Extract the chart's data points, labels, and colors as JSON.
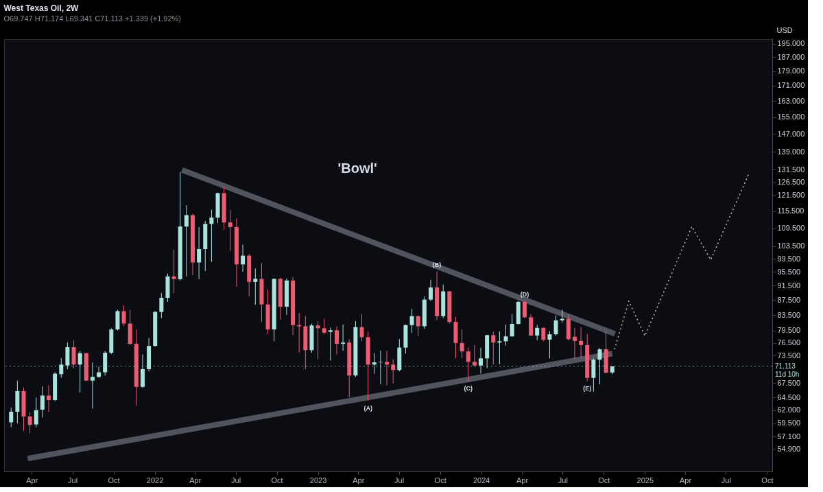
{
  "chart_data": {
    "type": "candlestick",
    "title": "West Texas Oil, 2W",
    "subtitle": "O69.747 H71.174 L69.341 C71.113 +1.339 (+1.92%)",
    "ylabel": "USD",
    "x": [
      "2021-02-14",
      "2021-02-28",
      "2021-03-14",
      "2021-03-28",
      "2021-04-11",
      "2021-04-25",
      "2021-05-09",
      "2021-05-23",
      "2021-06-06",
      "2021-06-20",
      "2021-07-04",
      "2021-07-18",
      "2021-08-01",
      "2021-08-15",
      "2021-08-29",
      "2021-09-12",
      "2021-09-26",
      "2021-10-10",
      "2021-10-24",
      "2021-11-07",
      "2021-11-21",
      "2021-12-05",
      "2021-12-19",
      "2022-01-02",
      "2022-01-16",
      "2022-01-30",
      "2022-02-13",
      "2022-02-27",
      "2022-03-13",
      "2022-03-27",
      "2022-04-10",
      "2022-04-24",
      "2022-05-08",
      "2022-05-22",
      "2022-06-05",
      "2022-06-19",
      "2022-07-03",
      "2022-07-17",
      "2022-07-31",
      "2022-08-14",
      "2022-08-28",
      "2022-09-11",
      "2022-09-25",
      "2022-10-09",
      "2022-10-23",
      "2022-11-06",
      "2022-11-20",
      "2022-12-04",
      "2022-12-18",
      "2023-01-01",
      "2023-01-15",
      "2023-01-29",
      "2023-02-12",
      "2023-02-26",
      "2023-03-12",
      "2023-03-26",
      "2023-04-09",
      "2023-04-23",
      "2023-05-07",
      "2023-05-21",
      "2023-06-04",
      "2023-06-18",
      "2023-07-02",
      "2023-07-16",
      "2023-07-30",
      "2023-08-13",
      "2023-08-27",
      "2023-09-10",
      "2023-09-24",
      "2023-10-08",
      "2023-10-22",
      "2023-11-05",
      "2023-11-19",
      "2023-12-03",
      "2023-12-17",
      "2023-12-31",
      "2024-01-14",
      "2024-01-28",
      "2024-02-11",
      "2024-02-25",
      "2024-03-10",
      "2024-03-24",
      "2024-04-07",
      "2024-04-21",
      "2024-05-05",
      "2024-05-19",
      "2024-06-02",
      "2024-06-16",
      "2024-06-30",
      "2024-07-14",
      "2024-07-28",
      "2024-08-11",
      "2024-08-25",
      "2024-09-08",
      "2024-09-22",
      "2024-10-06",
      "2024-10-20"
    ],
    "ohlc": [
      [
        59.7,
        62.5,
        58.8,
        61.7
      ],
      [
        61.7,
        68.0,
        59.5,
        65.8
      ],
      [
        65.8,
        66.5,
        58.1,
        60.8
      ],
      [
        60.8,
        61.6,
        57.7,
        59.2
      ],
      [
        59.3,
        64.5,
        58.8,
        62.0
      ],
      [
        62.1,
        66.8,
        60.6,
        64.9
      ],
      [
        64.9,
        67.0,
        61.7,
        64.0
      ],
      [
        64.0,
        69.8,
        63.8,
        69.5
      ],
      [
        69.4,
        73.0,
        68.6,
        71.5
      ],
      [
        71.3,
        76.6,
        70.5,
        75.5
      ],
      [
        75.5,
        77.1,
        70.7,
        71.5
      ],
      [
        71.5,
        74.6,
        65.5,
        74.1
      ],
      [
        74.1,
        74.2,
        68.0,
        68.0
      ],
      [
        68.0,
        72.0,
        62.3,
        68.8
      ],
      [
        68.8,
        71.0,
        68.6,
        69.8
      ],
      [
        69.8,
        74.6,
        69.1,
        74.2
      ],
      [
        74.2,
        80.1,
        73.9,
        79.8
      ],
      [
        79.8,
        84.9,
        79.6,
        84.5
      ],
      [
        84.5,
        86.0,
        80.6,
        81.3
      ],
      [
        81.3,
        84.9,
        76.0,
        76.3
      ],
      [
        76.3,
        79.8,
        62.9,
        66.7
      ],
      [
        66.7,
        73.8,
        66.5,
        70.5
      ],
      [
        70.5,
        77.7,
        70.0,
        75.8
      ],
      [
        75.8,
        84.5,
        75.6,
        84.3
      ],
      [
        84.3,
        89.4,
        82.7,
        88.1
      ],
      [
        88.1,
        95.0,
        87.0,
        94.2
      ],
      [
        94.2,
        102.4,
        89.4,
        93.4
      ],
      [
        93.4,
        130.5,
        93.0,
        110.1
      ],
      [
        110.1,
        117.7,
        94.2,
        114.1
      ],
      [
        114.1,
        114.6,
        94.6,
        98.4
      ],
      [
        98.4,
        109.9,
        93.4,
        102.6
      ],
      [
        102.6,
        112.0,
        95.8,
        111.0
      ],
      [
        111.0,
        116.0,
        98.6,
        113.2
      ],
      [
        113.2,
        122.4,
        111.3,
        122.2
      ],
      [
        122.2,
        124.8,
        109.0,
        111.5
      ],
      [
        111.5,
        116.0,
        102.0,
        109.9
      ],
      [
        109.9,
        113.0,
        91.2,
        97.8
      ],
      [
        97.8,
        104.0,
        95.6,
        100.5
      ],
      [
        100.5,
        101.0,
        88.5,
        92.6
      ],
      [
        92.6,
        96.6,
        86.2,
        93.5
      ],
      [
        93.5,
        98.2,
        81.7,
        86.3
      ],
      [
        86.3,
        90.4,
        78.7,
        79.8
      ],
      [
        79.8,
        93.5,
        76.9,
        93.5
      ],
      [
        93.5,
        93.8,
        82.3,
        85.7
      ],
      [
        85.7,
        93.6,
        83.5,
        93.0
      ],
      [
        93.0,
        94.0,
        78.4,
        80.9
      ],
      [
        80.9,
        84.0,
        74.2,
        80.6
      ],
      [
        80.6,
        83.2,
        70.5,
        74.8
      ],
      [
        74.8,
        81.3,
        74.2,
        80.8
      ],
      [
        80.8,
        81.9,
        72.7,
        80.1
      ],
      [
        80.1,
        82.5,
        78.6,
        79.0
      ],
      [
        79.2,
        80.3,
        72.4,
        79.6
      ],
      [
        79.6,
        80.6,
        73.8,
        76.3
      ],
      [
        76.3,
        81.0,
        74.7,
        76.6
      ],
      [
        76.6,
        77.4,
        64.6,
        69.1
      ],
      [
        69.1,
        81.9,
        68.8,
        80.4
      ],
      [
        80.4,
        83.7,
        76.9,
        77.9
      ],
      [
        77.9,
        79.3,
        63.9,
        71.5
      ],
      [
        71.5,
        74.1,
        69.5,
        72.0
      ],
      [
        72.0,
        74.7,
        67.2,
        72.1
      ],
      [
        72.1,
        74.6,
        67.0,
        71.5
      ],
      [
        71.5,
        72.7,
        67.4,
        70.3
      ],
      [
        70.3,
        77.4,
        70.0,
        75.4
      ],
      [
        75.4,
        81.0,
        74.0,
        80.9
      ],
      [
        80.9,
        85.1,
        79.0,
        83.2
      ],
      [
        83.2,
        83.3,
        78.2,
        80.6
      ],
      [
        80.6,
        88.5,
        80.0,
        87.6
      ],
      [
        87.6,
        93.2,
        87.2,
        91.0
      ],
      [
        91.0,
        95.7,
        82.1,
        83.2
      ],
      [
        83.2,
        91.8,
        82.7,
        89.9
      ],
      [
        89.9,
        90.0,
        81.3,
        81.7
      ],
      [
        81.7,
        83.0,
        72.9,
        76.5
      ],
      [
        76.5,
        79.8,
        73.0,
        74.5
      ],
      [
        74.5,
        75.4,
        67.9,
        72.1
      ],
      [
        72.1,
        76.0,
        71.1,
        71.3
      ],
      [
        71.3,
        75.4,
        69.5,
        72.9
      ],
      [
        72.9,
        78.5,
        70.7,
        78.4
      ],
      [
        78.4,
        79.3,
        71.5,
        76.6
      ],
      [
        76.6,
        79.3,
        71.6,
        76.9
      ],
      [
        76.9,
        81.0,
        75.9,
        78.1
      ],
      [
        78.1,
        83.7,
        78.0,
        81.2
      ],
      [
        81.2,
        87.2,
        81.0,
        87.0
      ],
      [
        87.0,
        87.4,
        82.7,
        82.9
      ],
      [
        82.9,
        83.7,
        78.2,
        78.3
      ],
      [
        78.3,
        81.0,
        77.1,
        80.2
      ],
      [
        80.2,
        80.3,
        76.9,
        77.3
      ],
      [
        77.3,
        79.4,
        72.9,
        78.6
      ],
      [
        78.6,
        83.4,
        78.2,
        82.1
      ],
      [
        82.1,
        84.9,
        81.5,
        82.5
      ],
      [
        82.5,
        83.6,
        77.1,
        77.4
      ],
      [
        78.0,
        80.2,
        72.7,
        77.0
      ],
      [
        77.0,
        80.4,
        73.0,
        76.0
      ],
      [
        76.0,
        78.7,
        67.9,
        68.6
      ],
      [
        68.6,
        72.9,
        65.7,
        72.6
      ],
      [
        72.6,
        75.2,
        67.2,
        75.0
      ],
      [
        75.0,
        79.3,
        69.6,
        69.7
      ],
      [
        69.747,
        71.174,
        69.341,
        71.113
      ]
    ],
    "colors": [
      "#a9e5df",
      "#a9e5df",
      "#ef5b73",
      "#ef5b73",
      "#a9e5df",
      "#a9e5df",
      "#ef5b73",
      "#a9e5df",
      "#a9e5df",
      "#a9e5df",
      "#ef5b73",
      "#a9e5df",
      "#ef5b73",
      "#a9e5df",
      "#a9e5df",
      "#a9e5df",
      "#a9e5df",
      "#a9e5df",
      "#ef5b73",
      "#ef5b73",
      "#ef5b73",
      "#a9e5df",
      "#a9e5df",
      "#a9e5df",
      "#a9e5df",
      "#a9e5df",
      "#ef5b73",
      "#a9e5df",
      "#a9e5df",
      "#ef5b73",
      "#a9e5df",
      "#a9e5df",
      "#a9e5df",
      "#a9e5df",
      "#ef5b73",
      "#ef5b73",
      "#ef5b73",
      "#a9e5df",
      "#ef5b73",
      "#a9e5df",
      "#ef5b73",
      "#ef5b73",
      "#a9e5df",
      "#ef5b73",
      "#a9e5df",
      "#ef5b73",
      "#ef5b73",
      "#ef5b73",
      "#a9e5df",
      "#ef5b73",
      "#ef5b73",
      "#a9e5df",
      "#ef5b73",
      "#a9e5df",
      "#ef5b73",
      "#a9e5df",
      "#ef5b73",
      "#ef5b73",
      "#a9e5df",
      "#a9e5df",
      "#ef5b73",
      "#ef5b73",
      "#a9e5df",
      "#a9e5df",
      "#a9e5df",
      "#ef5b73",
      "#a9e5df",
      "#a9e5df",
      "#ef5b73",
      "#a9e5df",
      "#ef5b73",
      "#ef5b73",
      "#ef5b73",
      "#ef5b73",
      "#ef5b73",
      "#a9e5df",
      "#a9e5df",
      "#ef5b73",
      "#a9e5df",
      "#a9e5df",
      "#a9e5df",
      "#a9e5df",
      "#ef5b73",
      "#ef5b73",
      "#a9e5df",
      "#ef5b73",
      "#a9e5df",
      "#a9e5df",
      "#a9e5df",
      "#ef5b73",
      "#ef5b73",
      "#ef5b73",
      "#ef5b73",
      "#a9e5df",
      "#a9e5df",
      "#ef5b73",
      "#a9e5df"
    ],
    "series": [
      {
        "type": "line",
        "color": "#8c909a",
        "line_style": "solid",
        "x": [
          "2022-03-03",
          "2024-10-26"
        ],
        "values": [
          131.4,
          78.7
        ]
      },
      {
        "type": "line",
        "color": "#8c909a",
        "line_style": "solid",
        "x": [
          "2021-03-23",
          "2024-10-20"
        ],
        "values": [
          53.3,
          74.0
        ]
      },
      {
        "type": "line",
        "color": "#d0d0d0",
        "line_style": "dotted",
        "x": [
          "2024-10-25",
          "2024-11-26",
          "2025-01-01",
          "2025-04-16",
          "2025-05-28",
          "2025-08-22"
        ],
        "values": [
          75.0,
          87.2,
          78.2,
          110.1,
          99.2,
          130.1
        ]
      }
    ],
    "xlim": [
      "2021-02-06",
      "2025-10-05"
    ],
    "xticks": [
      {
        "value": "2021-04-01",
        "label": "Apr"
      },
      {
        "value": "2021-07-01",
        "label": "Jul"
      },
      {
        "value": "2021-10-01",
        "label": "Oct"
      },
      {
        "value": "2022-01-01",
        "label": "2022"
      },
      {
        "value": "2022-04-01",
        "label": "Apr"
      },
      {
        "value": "2022-07-01",
        "label": "Jul"
      },
      {
        "value": "2022-10-01",
        "label": "Oct"
      },
      {
        "value": "2023-01-01",
        "label": "2023"
      },
      {
        "value": "2023-04-01",
        "label": "Apr"
      },
      {
        "value": "2023-07-01",
        "label": "Jul"
      },
      {
        "value": "2023-10-01",
        "label": "Oct"
      },
      {
        "value": "2024-01-01",
        "label": "2024"
      },
      {
        "value": "2024-04-01",
        "label": "Apr"
      },
      {
        "value": "2024-07-01",
        "label": "Jul"
      },
      {
        "value": "2024-10-01",
        "label": "Oct"
      },
      {
        "value": "2025-01-01",
        "label": "2025"
      },
      {
        "value": "2025-04-01",
        "label": "Apr"
      },
      {
        "value": "2025-07-01",
        "label": "Jul"
      },
      {
        "value": "2025-10-01",
        "label": "Oct"
      }
    ],
    "ylim": [
      51.2,
      197.8
    ],
    "log": true,
    "grid": false,
    "yticks": [
      {
        "value": 54.9,
        "label": "54.900"
      },
      {
        "value": 57.1,
        "label": "57.100"
      },
      {
        "value": 59.5,
        "label": "59.500"
      },
      {
        "value": 62,
        "label": "62.000"
      },
      {
        "value": 64.5,
        "label": "64.500"
      },
      {
        "value": 67.5,
        "label": "67.500"
      },
      {
        "value": 73.5,
        "label": "73.500"
      },
      {
        "value": 76.5,
        "label": "76.500"
      },
      {
        "value": 79.5,
        "label": "79.500"
      },
      {
        "value": 83.5,
        "label": "83.500"
      },
      {
        "value": 87.5,
        "label": "87.500"
      },
      {
        "value": 91.5,
        "label": "91.500"
      },
      {
        "value": 95.5,
        "label": "95.500"
      },
      {
        "value": 99.5,
        "label": "99.500"
      },
      {
        "value": 103.5,
        "label": "103.500"
      },
      {
        "value": 109.5,
        "label": "109.500"
      },
      {
        "value": 115.5,
        "label": "115.500"
      },
      {
        "value": 121.5,
        "label": "121.500"
      },
      {
        "value": 126.5,
        "label": "126.500"
      },
      {
        "value": 131.5,
        "label": "131.500"
      },
      {
        "value": 139,
        "label": "139.000"
      },
      {
        "value": 147,
        "label": "147.000"
      },
      {
        "value": 155,
        "label": "155.000"
      },
      {
        "value": 163,
        "label": "163.000"
      },
      {
        "value": 171,
        "label": "171.000"
      },
      {
        "value": 179,
        "label": "179.000"
      },
      {
        "value": 187,
        "label": "187.000"
      },
      {
        "value": 195,
        "label": "195.000"
      }
    ],
    "ref_lines": [
      {
        "axis": "y",
        "value": 71.113,
        "label": "71.113\n11d 10h",
        "color": "#a9e5df",
        "line_style": "dotted"
      }
    ],
    "annotations": [
      "'Bowl'",
      {
        "text": "(A)",
        "x": "2023-04-23",
        "y": 63.9
      },
      {
        "text": "(B)",
        "x": "2023-09-24",
        "y": 95.7
      },
      {
        "text": "(C)",
        "x": "2023-12-03",
        "y": 67.9
      },
      {
        "text": "(D)",
        "x": "2024-04-07",
        "y": 87.4
      },
      {
        "text": "(E)",
        "x": "2024-08-25",
        "y": 67.9
      }
    ]
  }
}
